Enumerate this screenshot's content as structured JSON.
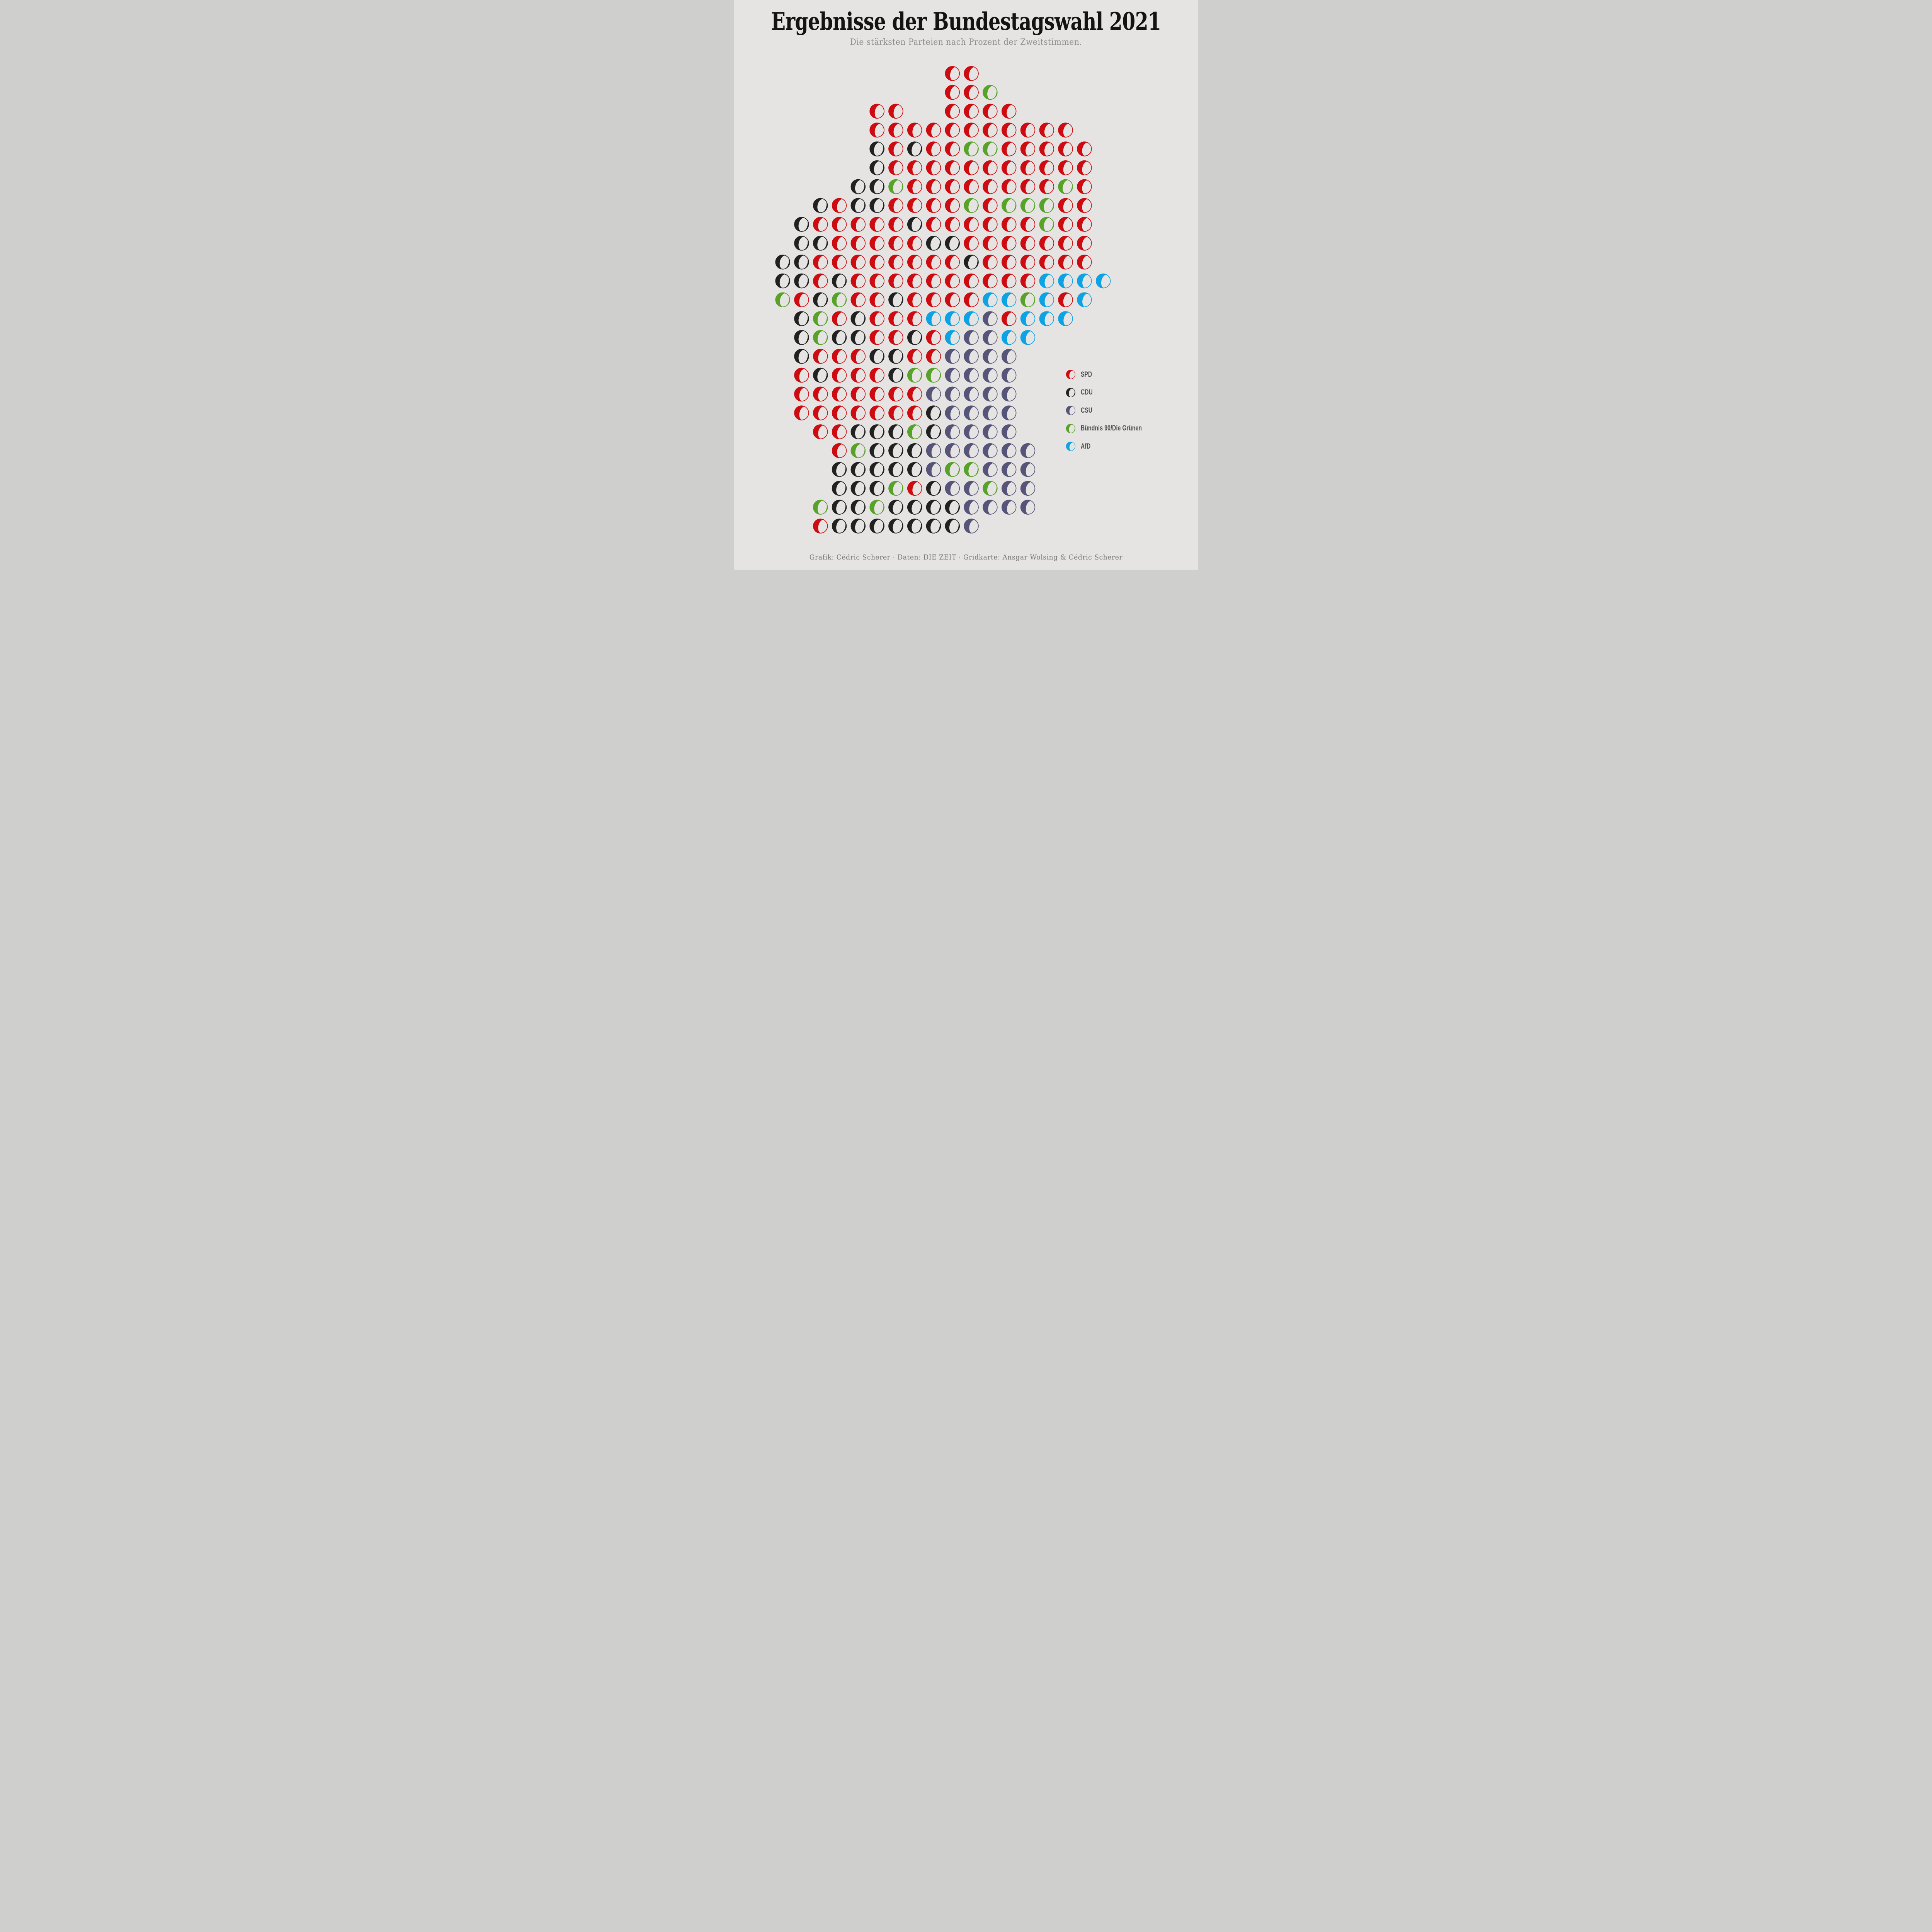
{
  "title": "Ergebnisse der Bundestagswahl 2021",
  "subtitle": "Die stärksten Parteien nach Prozent der Zweitstimmen.",
  "credit": "Grafik: Cédric Scherer · Daten: DIE ZEIT · Gridkarte: Ansgar Wolsing & Cédric Scherer",
  "colors": {
    "background": "#e5e4e3",
    "title_text": "#131313",
    "subtitle_text": "#8e8d8c",
    "credit_text": "#787776",
    "legend_text": "#4e4e4e",
    "spd_red": "#ce0b10",
    "cdu_black": "#212121",
    "csu_slate": "#565478",
    "gruene_green": "#58a229",
    "afd_blue": "#0da2e4"
  },
  "legend": {
    "items": [
      {
        "code": "S",
        "label": "SPD"
      },
      {
        "code": "C",
        "label": "CDU"
      },
      {
        "code": "U",
        "label": "CSU"
      },
      {
        "code": "G",
        "label": "Bündnis 90/Die Grünen"
      },
      {
        "code": "A",
        "label": "AfD"
      }
    ]
  },
  "chart_data": {
    "type": "grid-map (moon glyphs)",
    "title": "Ergebnisse der Bundestagswahl 2021",
    "subtitle": "Die stärksten Parteien nach Prozent der Zweitstimmen.",
    "description": "Square-grid cartogram of the 2021 German federal election constituencies. Each moon glyph is one constituency cell; the glyph color is the strongest party by Zweitstimmen share, the filled left crescent of the moon encodes that party's percentage (values not labeled in the image).",
    "legend_position": "middle-right",
    "parties": {
      "S": {
        "name": "SPD",
        "color": "#ce0b10",
        "fill_fraction": 0.44
      },
      "C": {
        "name": "CDU",
        "color": "#212121",
        "fill_fraction": 0.37
      },
      "U": {
        "name": "CSU",
        "color": "#565478",
        "fill_fraction": 0.46
      },
      "G": {
        "name": "Bündnis 90/Die Grünen",
        "color": "#58a229",
        "fill_fraction": 0.39
      },
      "A": {
        "name": "AfD",
        "color": "#0da2e4",
        "fill_fraction": 0.46
      }
    },
    "grid_note": "rows top-to-bottom; each cell = [column index 0-17, party code]",
    "grid": [
      [
        [
          9,
          "S"
        ],
        [
          10,
          "S"
        ]
      ],
      [
        [
          9,
          "S"
        ],
        [
          10,
          "S"
        ],
        [
          11,
          "G"
        ]
      ],
      [
        [
          5,
          "S"
        ],
        [
          6,
          "S"
        ],
        [
          9,
          "S"
        ],
        [
          10,
          "S"
        ],
        [
          11,
          "S"
        ],
        [
          12,
          "S"
        ]
      ],
      [
        [
          5,
          "S"
        ],
        [
          6,
          "S"
        ],
        [
          7,
          "S"
        ],
        [
          8,
          "S"
        ],
        [
          9,
          "S"
        ],
        [
          10,
          "S"
        ],
        [
          11,
          "S"
        ],
        [
          12,
          "S"
        ],
        [
          13,
          "S"
        ],
        [
          14,
          "S"
        ],
        [
          15,
          "S"
        ]
      ],
      [
        [
          5,
          "C"
        ],
        [
          6,
          "S"
        ],
        [
          7,
          "C"
        ],
        [
          8,
          "S"
        ],
        [
          9,
          "S"
        ],
        [
          10,
          "G"
        ],
        [
          11,
          "G"
        ],
        [
          12,
          "S"
        ],
        [
          13,
          "S"
        ],
        [
          14,
          "S"
        ],
        [
          15,
          "S"
        ],
        [
          16,
          "S"
        ]
      ],
      [
        [
          5,
          "C"
        ],
        [
          6,
          "S"
        ],
        [
          7,
          "S"
        ],
        [
          8,
          "S"
        ],
        [
          9,
          "S"
        ],
        [
          10,
          "S"
        ],
        [
          11,
          "S"
        ],
        [
          12,
          "S"
        ],
        [
          13,
          "S"
        ],
        [
          14,
          "S"
        ],
        [
          15,
          "S"
        ],
        [
          16,
          "S"
        ]
      ],
      [
        [
          4,
          "C"
        ],
        [
          5,
          "C"
        ],
        [
          6,
          "G"
        ],
        [
          7,
          "S"
        ],
        [
          8,
          "S"
        ],
        [
          9,
          "S"
        ],
        [
          10,
          "S"
        ],
        [
          11,
          "S"
        ],
        [
          12,
          "S"
        ],
        [
          13,
          "S"
        ],
        [
          14,
          "S"
        ],
        [
          15,
          "G"
        ],
        [
          16,
          "S"
        ]
      ],
      [
        [
          2,
          "C"
        ],
        [
          3,
          "S"
        ],
        [
          4,
          "C"
        ],
        [
          5,
          "C"
        ],
        [
          6,
          "S"
        ],
        [
          7,
          "S"
        ],
        [
          8,
          "S"
        ],
        [
          9,
          "S"
        ],
        [
          10,
          "G"
        ],
        [
          11,
          "S"
        ],
        [
          12,
          "G"
        ],
        [
          13,
          "G"
        ],
        [
          14,
          "G"
        ],
        [
          15,
          "S"
        ],
        [
          16,
          "S"
        ]
      ],
      [
        [
          1,
          "C"
        ],
        [
          2,
          "S"
        ],
        [
          3,
          "S"
        ],
        [
          4,
          "S"
        ],
        [
          5,
          "S"
        ],
        [
          6,
          "S"
        ],
        [
          7,
          "C"
        ],
        [
          8,
          "S"
        ],
        [
          9,
          "S"
        ],
        [
          10,
          "S"
        ],
        [
          11,
          "S"
        ],
        [
          12,
          "S"
        ],
        [
          13,
          "S"
        ],
        [
          14,
          "G"
        ],
        [
          15,
          "S"
        ],
        [
          16,
          "S"
        ]
      ],
      [
        [
          1,
          "C"
        ],
        [
          2,
          "C"
        ],
        [
          3,
          "S"
        ],
        [
          4,
          "S"
        ],
        [
          5,
          "S"
        ],
        [
          6,
          "S"
        ],
        [
          7,
          "S"
        ],
        [
          8,
          "C"
        ],
        [
          9,
          "C"
        ],
        [
          10,
          "S"
        ],
        [
          11,
          "S"
        ],
        [
          12,
          "S"
        ],
        [
          13,
          "S"
        ],
        [
          14,
          "S"
        ],
        [
          15,
          "S"
        ],
        [
          16,
          "S"
        ]
      ],
      [
        [
          0,
          "C"
        ],
        [
          1,
          "C"
        ],
        [
          2,
          "S"
        ],
        [
          3,
          "S"
        ],
        [
          4,
          "S"
        ],
        [
          5,
          "S"
        ],
        [
          6,
          "S"
        ],
        [
          7,
          "S"
        ],
        [
          8,
          "S"
        ],
        [
          9,
          "S"
        ],
        [
          10,
          "C"
        ],
        [
          11,
          "S"
        ],
        [
          12,
          "S"
        ],
        [
          13,
          "S"
        ],
        [
          14,
          "S"
        ],
        [
          15,
          "S"
        ],
        [
          16,
          "S"
        ]
      ],
      [
        [
          0,
          "C"
        ],
        [
          1,
          "C"
        ],
        [
          2,
          "S"
        ],
        [
          3,
          "C"
        ],
        [
          4,
          "S"
        ],
        [
          5,
          "S"
        ],
        [
          6,
          "S"
        ],
        [
          7,
          "S"
        ],
        [
          8,
          "S"
        ],
        [
          9,
          "S"
        ],
        [
          10,
          "S"
        ],
        [
          11,
          "S"
        ],
        [
          12,
          "S"
        ],
        [
          13,
          "S"
        ],
        [
          14,
          "A"
        ],
        [
          15,
          "A"
        ],
        [
          16,
          "A"
        ],
        [
          17,
          "A"
        ]
      ],
      [
        [
          0,
          "G"
        ],
        [
          1,
          "S"
        ],
        [
          2,
          "C"
        ],
        [
          3,
          "G"
        ],
        [
          4,
          "S"
        ],
        [
          5,
          "S"
        ],
        [
          6,
          "C"
        ],
        [
          7,
          "S"
        ],
        [
          8,
          "S"
        ],
        [
          9,
          "S"
        ],
        [
          10,
          "S"
        ],
        [
          11,
          "A"
        ],
        [
          12,
          "A"
        ],
        [
          13,
          "G"
        ],
        [
          14,
          "A"
        ],
        [
          15,
          "S"
        ],
        [
          16,
          "A"
        ]
      ],
      [
        [
          1,
          "C"
        ],
        [
          2,
          "G"
        ],
        [
          3,
          "S"
        ],
        [
          4,
          "C"
        ],
        [
          5,
          "S"
        ],
        [
          6,
          "S"
        ],
        [
          7,
          "S"
        ],
        [
          8,
          "A"
        ],
        [
          9,
          "A"
        ],
        [
          10,
          "A"
        ],
        [
          11,
          "U"
        ],
        [
          12,
          "S"
        ],
        [
          13,
          "A"
        ],
        [
          14,
          "A"
        ],
        [
          15,
          "A"
        ]
      ],
      [
        [
          1,
          "C"
        ],
        [
          2,
          "G"
        ],
        [
          3,
          "C"
        ],
        [
          4,
          "C"
        ],
        [
          5,
          "S"
        ],
        [
          6,
          "S"
        ],
        [
          7,
          "C"
        ],
        [
          8,
          "S"
        ],
        [
          9,
          "A"
        ],
        [
          10,
          "U"
        ],
        [
          11,
          "U"
        ],
        [
          12,
          "A"
        ],
        [
          13,
          "A"
        ]
      ],
      [
        [
          1,
          "C"
        ],
        [
          2,
          "S"
        ],
        [
          3,
          "S"
        ],
        [
          4,
          "S"
        ],
        [
          5,
          "C"
        ],
        [
          6,
          "C"
        ],
        [
          7,
          "S"
        ],
        [
          8,
          "S"
        ],
        [
          9,
          "U"
        ],
        [
          10,
          "U"
        ],
        [
          11,
          "U"
        ],
        [
          12,
          "U"
        ]
      ],
      [
        [
          1,
          "S"
        ],
        [
          2,
          "C"
        ],
        [
          3,
          "S"
        ],
        [
          4,
          "S"
        ],
        [
          5,
          "S"
        ],
        [
          6,
          "C"
        ],
        [
          7,
          "G"
        ],
        [
          8,
          "G"
        ],
        [
          9,
          "U"
        ],
        [
          10,
          "U"
        ],
        [
          11,
          "U"
        ],
        [
          12,
          "U"
        ]
      ],
      [
        [
          1,
          "S"
        ],
        [
          2,
          "S"
        ],
        [
          3,
          "S"
        ],
        [
          4,
          "S"
        ],
        [
          5,
          "S"
        ],
        [
          6,
          "S"
        ],
        [
          7,
          "S"
        ],
        [
          8,
          "U"
        ],
        [
          9,
          "U"
        ],
        [
          10,
          "U"
        ],
        [
          11,
          "U"
        ],
        [
          12,
          "U"
        ]
      ],
      [
        [
          1,
          "S"
        ],
        [
          2,
          "S"
        ],
        [
          3,
          "S"
        ],
        [
          4,
          "S"
        ],
        [
          5,
          "S"
        ],
        [
          6,
          "S"
        ],
        [
          7,
          "S"
        ],
        [
          8,
          "C"
        ],
        [
          9,
          "U"
        ],
        [
          10,
          "U"
        ],
        [
          11,
          "U"
        ],
        [
          12,
          "U"
        ]
      ],
      [
        [
          2,
          "S"
        ],
        [
          3,
          "S"
        ],
        [
          4,
          "C"
        ],
        [
          5,
          "C"
        ],
        [
          6,
          "C"
        ],
        [
          7,
          "G"
        ],
        [
          8,
          "C"
        ],
        [
          9,
          "U"
        ],
        [
          10,
          "U"
        ],
        [
          11,
          "U"
        ],
        [
          12,
          "U"
        ]
      ],
      [
        [
          3,
          "S"
        ],
        [
          4,
          "G"
        ],
        [
          5,
          "C"
        ],
        [
          6,
          "C"
        ],
        [
          7,
          "C"
        ],
        [
          8,
          "U"
        ],
        [
          9,
          "U"
        ],
        [
          10,
          "U"
        ],
        [
          11,
          "U"
        ],
        [
          12,
          "U"
        ],
        [
          13,
          "U"
        ]
      ],
      [
        [
          3,
          "C"
        ],
        [
          4,
          "C"
        ],
        [
          5,
          "C"
        ],
        [
          6,
          "C"
        ],
        [
          7,
          "C"
        ],
        [
          8,
          "U"
        ],
        [
          9,
          "G"
        ],
        [
          10,
          "G"
        ],
        [
          11,
          "U"
        ],
        [
          12,
          "U"
        ],
        [
          13,
          "U"
        ]
      ],
      [
        [
          3,
          "C"
        ],
        [
          4,
          "C"
        ],
        [
          5,
          "C"
        ],
        [
          6,
          "G"
        ],
        [
          7,
          "S"
        ],
        [
          8,
          "C"
        ],
        [
          9,
          "U"
        ],
        [
          10,
          "U"
        ],
        [
          11,
          "G"
        ],
        [
          12,
          "U"
        ],
        [
          13,
          "U"
        ]
      ],
      [
        [
          2,
          "G"
        ],
        [
          3,
          "C"
        ],
        [
          4,
          "C"
        ],
        [
          5,
          "G"
        ],
        [
          6,
          "C"
        ],
        [
          7,
          "C"
        ],
        [
          8,
          "C"
        ],
        [
          9,
          "C"
        ],
        [
          10,
          "U"
        ],
        [
          11,
          "U"
        ],
        [
          12,
          "U"
        ],
        [
          13,
          "U"
        ]
      ],
      [
        [
          2,
          "S"
        ],
        [
          3,
          "C"
        ],
        [
          4,
          "C"
        ],
        [
          5,
          "C"
        ],
        [
          6,
          "C"
        ],
        [
          7,
          "C"
        ],
        [
          8,
          "C"
        ],
        [
          9,
          "C"
        ],
        [
          10,
          "U"
        ]
      ]
    ]
  }
}
